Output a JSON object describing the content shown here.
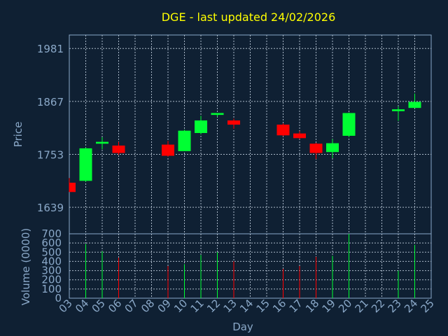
{
  "chart_data": [
    {
      "type": "candlestick",
      "title": "DGE - last updated 24/02/2026",
      "ylabel": "Price",
      "ylim": [
        1582,
        2010
      ],
      "yticks": [
        1639,
        1753,
        1867,
        1981
      ],
      "grid": true,
      "candles": [
        {
          "day": "03",
          "open": 1692,
          "high": 1702,
          "low": 1672,
          "close": 1672
        },
        {
          "day": "04",
          "open": 1696,
          "high": 1768,
          "low": 1694,
          "close": 1766
        },
        {
          "day": "05",
          "open": 1776,
          "high": 1790,
          "low": 1764,
          "close": 1780
        },
        {
          "day": "06",
          "open": 1772,
          "high": 1780,
          "low": 1752,
          "close": 1756
        },
        {
          "day": "09",
          "open": 1774,
          "high": 1782,
          "low": 1748,
          "close": 1750
        },
        {
          "day": "10",
          "open": 1760,
          "high": 1806,
          "low": 1760,
          "close": 1804
        },
        {
          "day": "11",
          "open": 1799,
          "high": 1836,
          "low": 1796,
          "close": 1826
        },
        {
          "day": "12",
          "open": 1838,
          "high": 1842,
          "low": 1834,
          "close": 1842
        },
        {
          "day": "13",
          "open": 1826,
          "high": 1830,
          "low": 1808,
          "close": 1817
        },
        {
          "day": "16",
          "open": 1817,
          "high": 1820,
          "low": 1792,
          "close": 1794
        },
        {
          "day": "17",
          "open": 1798,
          "high": 1803,
          "low": 1786,
          "close": 1788
        },
        {
          "day": "18",
          "open": 1776,
          "high": 1778,
          "low": 1743,
          "close": 1756
        },
        {
          "day": "19",
          "open": 1758,
          "high": 1786,
          "low": 1745,
          "close": 1777
        },
        {
          "day": "20",
          "open": 1793,
          "high": 1843,
          "low": 1790,
          "close": 1842
        },
        {
          "day": "23",
          "open": 1846,
          "high": 1856,
          "low": 1825,
          "close": 1850
        },
        {
          "day": "24",
          "open": 1853,
          "high": 1884,
          "low": 1853,
          "close": 1866
        }
      ],
      "up_color": "#00ff33",
      "down_color": "#ff0000"
    },
    {
      "type": "bar",
      "ylabel": "Volume (0000)",
      "xlabel": "Day",
      "ylim": [
        0,
        700
      ],
      "yticks": [
        0,
        100,
        200,
        300,
        400,
        500,
        600,
        700
      ],
      "grid": true,
      "categories": [
        "03",
        "04",
        "05",
        "06",
        "07",
        "08",
        "09",
        "10",
        "11",
        "12",
        "13",
        "14",
        "15",
        "16",
        "17",
        "18",
        "19",
        "20",
        "21",
        "22",
        "23",
        "24",
        "25"
      ],
      "bars": [
        {
          "day": "04",
          "value": 590,
          "color": "#00ff33"
        },
        {
          "day": "05",
          "value": 510,
          "color": "#00ff33"
        },
        {
          "day": "06",
          "value": 440,
          "color": "#ff0000"
        },
        {
          "day": "09",
          "value": 350,
          "color": "#ff0000"
        },
        {
          "day": "10",
          "value": 370,
          "color": "#00ff33"
        },
        {
          "day": "11",
          "value": 470,
          "color": "#00ff33"
        },
        {
          "day": "12",
          "value": 500,
          "color": "#00ff33"
        },
        {
          "day": "13",
          "value": 400,
          "color": "#ff0000"
        },
        {
          "day": "16",
          "value": 320,
          "color": "#ff0000"
        },
        {
          "day": "17",
          "value": 350,
          "color": "#ff0000"
        },
        {
          "day": "18",
          "value": 450,
          "color": "#ff0000"
        },
        {
          "day": "19",
          "value": 460,
          "color": "#00ff33"
        },
        {
          "day": "20",
          "value": 700,
          "color": "#00ff33"
        },
        {
          "day": "23",
          "value": 300,
          "color": "#00ff33"
        },
        {
          "day": "24",
          "value": 580,
          "color": "#00ff33"
        }
      ]
    }
  ],
  "colors": {
    "background": "#0f2033",
    "title": "#ffff00",
    "axis_text": "#8aa8c8",
    "grid": "#aab8c8"
  }
}
